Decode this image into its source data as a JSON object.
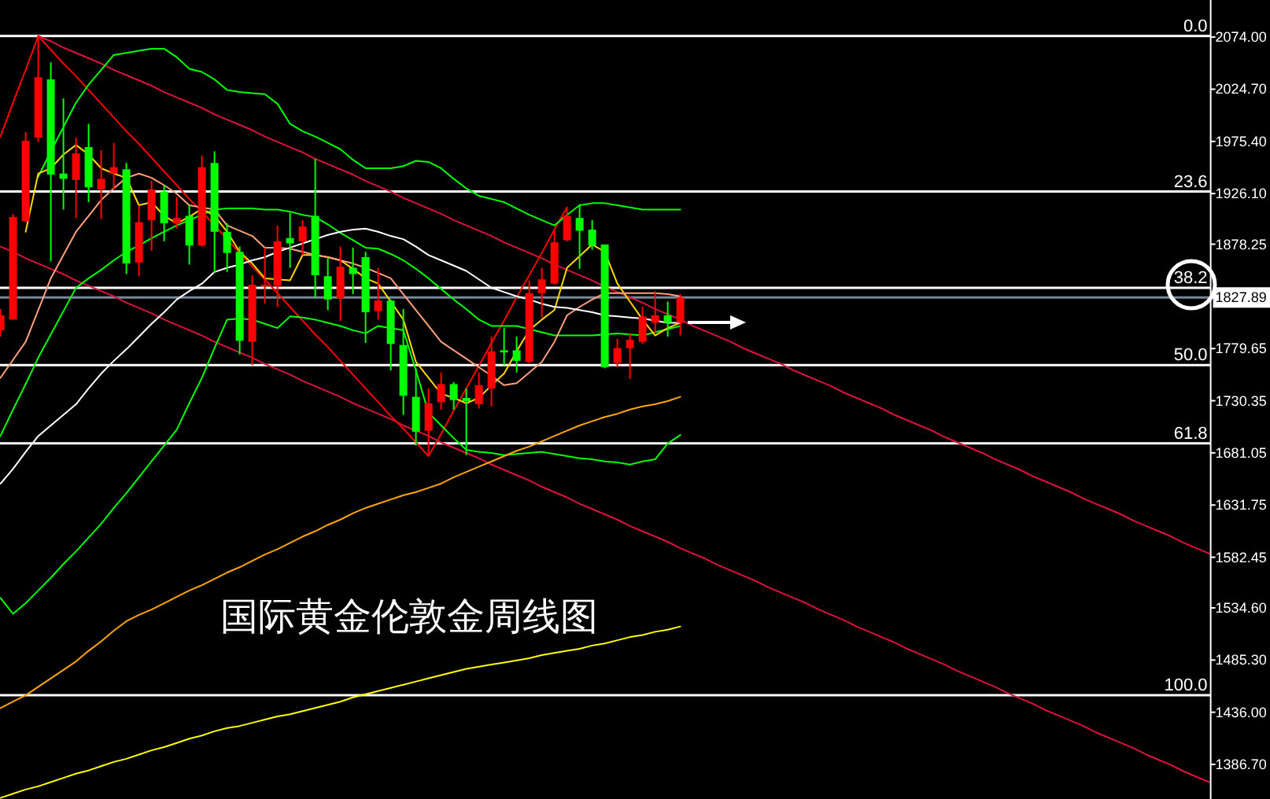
{
  "chart_data": {
    "type": "candlestick",
    "title": "国际黄金伦敦金周线图",
    "categories": [
      null,
      null,
      null,
      null,
      null,
      null,
      null,
      null,
      null,
      null,
      null,
      null,
      null,
      null,
      null,
      null,
      null,
      null,
      null,
      null,
      null,
      null,
      null,
      null,
      null,
      null,
      null,
      null,
      null,
      null,
      null,
      null,
      null,
      null,
      null,
      null,
      null,
      null,
      null,
      null,
      null,
      null,
      null,
      null,
      null,
      null,
      null,
      null,
      null,
      null,
      null,
      null,
      null,
      null,
      null,
      null,
      null,
      null,
      null,
      null,
      null,
      null,
      null,
      null,
      null,
      null,
      null,
      null,
      null,
      null,
      null,
      null,
      null,
      null,
      null,
      null,
      null,
      null,
      null,
      null,
      null,
      null,
      null,
      null,
      null,
      null,
      null,
      null,
      null,
      null,
      null,
      null,
      null,
      null,
      null,
      null,
      null
    ],
    "ohlc": [
      [
        1797,
        1817,
        1791,
        1811
      ],
      [
        1807,
        1907,
        1807,
        1904
      ],
      [
        1900,
        1984,
        1899,
        1976
      ],
      [
        1979,
        2075,
        1975,
        2036
      ],
      [
        2034,
        2050,
        1862,
        1944
      ],
      [
        1945,
        2016,
        1911,
        1940
      ],
      [
        1939,
        1979,
        1903,
        1964
      ],
      [
        1970,
        1992,
        1918,
        1932
      ],
      [
        1930,
        1967,
        1902,
        1940
      ],
      [
        1945,
        1974,
        1930,
        1951
      ],
      [
        1949,
        1955,
        1850,
        1860
      ],
      [
        1861,
        1915,
        1848,
        1899
      ],
      [
        1901,
        1938,
        1872,
        1930
      ],
      [
        1928,
        1934,
        1881,
        1898
      ],
      [
        1898,
        1923,
        1893,
        1903
      ],
      [
        1905,
        1915,
        1859,
        1877
      ],
      [
        1877,
        1962,
        1876,
        1951
      ],
      [
        1955,
        1966,
        1851,
        1890
      ],
      [
        1890,
        1898,
        1852,
        1870
      ],
      [
        1871,
        1876,
        1774,
        1787
      ],
      [
        1786,
        1849,
        1764,
        1840
      ],
      [
        1839,
        1875,
        1822,
        1840
      ],
      [
        1839,
        1896,
        1819,
        1881
      ],
      [
        1884,
        1908,
        1856,
        1879
      ],
      [
        1881,
        1901,
        1868,
        1895
      ],
      [
        1905,
        1959,
        1828,
        1849
      ],
      [
        1848,
        1865,
        1816,
        1826
      ],
      [
        1827,
        1876,
        1806,
        1857
      ],
      [
        1856,
        1875,
        1831,
        1850
      ],
      [
        1866,
        1871,
        1785,
        1814
      ],
      [
        1815,
        1856,
        1807,
        1825
      ],
      [
        1825,
        1826,
        1759,
        1784
      ],
      [
        1783,
        1817,
        1717,
        1735
      ],
      [
        1734,
        1761,
        1688,
        1701
      ],
      [
        1702,
        1742,
        1678,
        1728
      ],
      [
        1729,
        1757,
        1722,
        1746
      ],
      [
        1746,
        1748,
        1722,
        1731
      ],
      [
        1733,
        1742,
        1679,
        1730
      ],
      [
        1727,
        1757,
        1723,
        1745
      ],
      [
        1742,
        1791,
        1725,
        1777
      ],
      [
        1778,
        1799,
        1764,
        1776
      ],
      [
        1778,
        1791,
        1757,
        1768
      ],
      [
        1767,
        1844,
        1766,
        1832
      ],
      [
        1832,
        1856,
        1809,
        1845
      ],
      [
        1841,
        1891,
        1840,
        1880
      ],
      [
        1882,
        1913,
        1881,
        1905
      ],
      [
        1903,
        1916,
        1855,
        1891
      ],
      [
        1892,
        1901,
        1873,
        1877
      ],
      [
        1878,
        1878,
        1761,
        1762
      ],
      [
        1766,
        1789,
        1762,
        1780
      ],
      [
        1780,
        1794,
        1751,
        1788
      ],
      [
        1786,
        1819,
        1784,
        1810
      ],
      [
        1804,
        1834,
        1794,
        1811
      ],
      [
        1811,
        1824,
        1791,
        1804
      ],
      [
        1804,
        1831,
        1792,
        1827.89
      ],
      null,
      null,
      null,
      null,
      null,
      null,
      null,
      null,
      null,
      null,
      null,
      null,
      null,
      null,
      null,
      null,
      null,
      null,
      null,
      null,
      null,
      null,
      null,
      null,
      null,
      null,
      null,
      null,
      null,
      null,
      null,
      null,
      null,
      null,
      null,
      null,
      null,
      null,
      null,
      null,
      null,
      null
    ],
    "colors": [
      "#ff0000",
      "#ff0000",
      "#ff0000",
      "#ff0000",
      "#00ff00",
      "#00ff00",
      "#ff0000",
      "#00ff00",
      "#ff0000",
      "#ff0000",
      "#00ff00",
      "#ff0000",
      "#ff0000",
      "#00ff00",
      "#ff0000",
      "#00ff00",
      "#ff0000",
      "#00ff00",
      "#00ff00",
      "#00ff00",
      "#ff0000",
      "#ff0000",
      "#ff0000",
      "#00ff00",
      "#ff0000",
      "#00ff00",
      "#00ff00",
      "#ff0000",
      "#00ff00",
      "#00ff00",
      "#ff0000",
      "#00ff00",
      "#00ff00",
      "#00ff00",
      "#ff0000",
      "#ff0000",
      "#00ff00",
      "#00ff00",
      "#ff0000",
      "#ff0000",
      "#00ff00",
      "#00ff00",
      "#ff0000",
      "#ff0000",
      "#ff0000",
      "#ff0000",
      "#00ff00",
      "#00ff00",
      "#00ff00",
      "#ff0000",
      "#ff0000",
      "#ff0000",
      "#ff0000",
      "#00ff00",
      "#ff0000",
      null,
      null,
      null,
      null,
      null,
      null,
      null,
      null,
      null,
      null,
      null,
      null,
      null,
      null,
      null,
      null,
      null,
      null,
      null,
      null,
      null,
      null,
      null,
      null,
      null,
      null,
      null,
      null,
      null,
      null,
      null,
      null,
      null,
      null,
      null,
      null,
      null,
      null,
      null,
      null,
      null,
      null
    ],
    "ylim": [
      1354,
      2109
    ],
    "yticks": [
      {
        "value": 2074,
        "label": "2074.00"
      },
      {
        "value": 2024.7,
        "label": "2024.70"
      },
      {
        "value": 1975.4,
        "label": "1975.40"
      },
      {
        "value": 1926.1,
        "label": "1926.10"
      },
      {
        "value": 1878.25,
        "label": "1878.25"
      },
      {
        "value": 1827.89,
        "label": "1827.89"
      },
      {
        "value": 1779.65,
        "label": "1779.65"
      },
      {
        "value": 1730.35,
        "label": "1730.35"
      },
      {
        "value": 1681.05,
        "label": "1681.05"
      },
      {
        "value": 1631.75,
        "label": "1631.75"
      },
      {
        "value": 1582.45,
        "label": "1582.45"
      },
      {
        "value": 1534.6,
        "label": "1534.60"
      },
      {
        "value": 1485.3,
        "label": "1485.30"
      },
      {
        "value": 1436,
        "label": "1436.00"
      },
      {
        "value": 1386.7,
        "label": "1386.70"
      }
    ],
    "tick_labels": "y",
    "ref_lines": [
      {
        "axis": "y",
        "value": 2075,
        "color": "#ffffff"
      },
      {
        "axis": "y",
        "value": 1928,
        "color": "#ffffff"
      },
      {
        "axis": "y",
        "value": 1837,
        "color": "#ffffff"
      },
      {
        "axis": "y",
        "value": 1764,
        "color": "#ffffff"
      },
      {
        "axis": "y",
        "value": 1690,
        "color": "#ffffff"
      },
      {
        "axis": "y",
        "value": 1452,
        "color": "#ffffff"
      },
      {
        "axis": "y",
        "value": 1827.89,
        "color": "#778899"
      }
    ],
    "annotations": [
      {
        "text": "0.0",
        "y": 2075
      },
      {
        "text": "23.6",
        "y": 1928
      },
      {
        "text": "38.2",
        "y": 1837
      },
      {
        "text": "50.0",
        "y": 1764
      },
      {
        "text": "61.8",
        "y": 1690
      },
      {
        "text": "100.0",
        "y": 1452
      }
    ],
    "series": [
      {
        "type": "line",
        "color": "#dc143c",
        "values": [
          null,
          null,
          null,
          2075,
          2070,
          2064,
          2059,
          2054,
          2049,
          2043,
          2038,
          2033,
          2028,
          2022,
          2017,
          2012,
          2007,
          2001,
          1996,
          1991,
          1986,
          1980,
          1975,
          1970,
          1965,
          1959,
          1954,
          1949,
          1944,
          1938,
          1933,
          1928,
          1922,
          1917,
          1912,
          1907,
          1901,
          1896,
          1891,
          1886,
          1880,
          1875,
          1870,
          1865,
          1859,
          1854,
          1849,
          1844,
          1838,
          1833,
          1828,
          1823,
          1817,
          1812,
          1807,
          1801,
          1796,
          1791,
          1786,
          1780,
          1775,
          1770,
          1765,
          1759,
          1754,
          1749,
          1744,
          1738,
          1733,
          1728,
          1723,
          1717,
          1712,
          1707,
          1702,
          1696,
          1691,
          1686,
          1681,
          1675,
          1670,
          1665,
          1659,
          1654,
          1649,
          1644,
          1638,
          1633,
          1628,
          1623,
          1617,
          1612,
          1607,
          1602,
          1596,
          1591,
          1586
        ]
      },
      {
        "type": "line",
        "color": "#dc143c",
        "values": [
          1876,
          1871,
          1865,
          1860,
          1855,
          1850,
          1844,
          1839,
          1834,
          1829,
          1823,
          1818,
          1813,
          1807,
          1802,
          1797,
          1792,
          1786,
          1781,
          1776,
          1771,
          1765,
          1760,
          1755,
          1749,
          1744,
          1739,
          1734,
          1728,
          1723,
          1718,
          1713,
          1707,
          1702,
          1697,
          1691,
          1686,
          1681,
          1676,
          1670,
          1665,
          1660,
          1655,
          1649,
          1644,
          1639,
          1633,
          1628,
          1623,
          1618,
          1612,
          1607,
          1602,
          1597,
          1591,
          1586,
          1581,
          1575,
          1570,
          1565,
          1560,
          1554,
          1549,
          1544,
          1539,
          1533,
          1528,
          1523,
          1517,
          1512,
          1507,
          1502,
          1496,
          1491,
          1486,
          1481,
          1475,
          1470,
          1465,
          1460,
          1454,
          1449,
          1444,
          1438,
          1433,
          1428,
          1423,
          1417,
          1412,
          1407,
          1402,
          1396,
          1391,
          1386,
          1380,
          1375,
          1370
        ]
      },
      {
        "type": "line",
        "color": "#ff0000",
        "values": [
          1980,
          2012,
          2043,
          2075,
          2062,
          2049,
          2037,
          2024,
          2011,
          1998,
          1985,
          1973,
          1960,
          1947,
          1934,
          1921,
          1909,
          1896,
          1883,
          1870,
          1857,
          1845,
          1832,
          1819,
          1806,
          1793,
          1781,
          1768,
          1755,
          1742,
          1729,
          1716,
          1704,
          1691,
          1678,
          1699,
          1721,
          1742,
          1763,
          1785,
          1806,
          1828,
          1849,
          1870,
          1892,
          1913,
          null,
          null,
          null,
          null,
          null,
          null,
          null,
          null,
          null,
          null,
          null,
          null,
          null,
          null,
          null,
          null,
          null,
          null,
          null,
          null,
          null,
          null,
          null,
          null,
          null,
          null,
          null,
          null,
          null,
          null,
          null,
          null,
          null,
          null,
          null,
          null,
          null,
          null,
          null,
          null,
          null,
          null,
          null,
          null,
          null,
          null,
          null,
          null,
          null,
          null,
          null
        ]
      },
      {
        "type": "line",
        "color": "#00ff00",
        "values": [
          null,
          null,
          null,
          1942,
          1966,
          1989,
          2012,
          2029,
          2043,
          2057,
          2059,
          2061,
          2063,
          2063,
          2055,
          2044,
          2041,
          2034,
          2024,
          2022,
          2021,
          2020,
          2011,
          1992,
          1985,
          1980,
          1974,
          1968,
          1958,
          1950,
          1950,
          1950,
          1952,
          1957,
          1956,
          1950,
          1940,
          1931,
          1924,
          1921,
          1918,
          1912,
          1906,
          1901,
          1896,
          1906,
          1915,
          1917,
          1917,
          1915,
          1913,
          1911,
          1911,
          1911,
          1911,
          null,
          null,
          null,
          null,
          null,
          null,
          null,
          null,
          null,
          null,
          null,
          null,
          null,
          null,
          null,
          null,
          null,
          null,
          null,
          null,
          null,
          null,
          null,
          null,
          null,
          null,
          null,
          null,
          null,
          null,
          null,
          null,
          null,
          null,
          null,
          null,
          null,
          null,
          null,
          null,
          null,
          null
        ]
      },
      {
        "type": "line",
        "color": "#00ff00",
        "values": [
          1697,
          1722,
          1746,
          1771,
          1793,
          1815,
          1837,
          1846,
          1854,
          1863,
          1871,
          1877,
          1884,
          1890,
          1896,
          1901,
          1906,
          1911,
          1912,
          1912,
          1912,
          1911,
          1911,
          1909,
          1906,
          1904,
          1897,
          1889,
          1882,
          1875,
          1874,
          1869,
          1863,
          1855,
          1846,
          1836,
          1826,
          1817,
          1807,
          1801,
          1801,
          1801,
          1798,
          1795,
          1792,
          1792,
          1792,
          1792,
          1793,
          1794,
          1793,
          1792,
          1795,
          1798,
          1801,
          null,
          null,
          null,
          null,
          null,
          null,
          null,
          null,
          null,
          null,
          null,
          null,
          null,
          null,
          null,
          null,
          null,
          null,
          null,
          null,
          null,
          null,
          null,
          null,
          null,
          null,
          null,
          null,
          null,
          null,
          null,
          null,
          null,
          null,
          null,
          null,
          null,
          null,
          null,
          null,
          null,
          null
        ]
      },
      {
        "type": "line",
        "color": "#00ff00",
        "values": [
          1544,
          1529,
          1539,
          1551,
          1563,
          1576,
          1588,
          1601,
          1614,
          1629,
          1643,
          1658,
          1673,
          1688,
          1703,
          1728,
          1752,
          1780,
          1807,
          1808,
          1807,
          1803,
          1799,
          1810,
          1809,
          1807,
          1804,
          1801,
          1797,
          1794,
          1801,
          1799,
          1797,
          1759,
          1719,
          1707,
          1695,
          1684,
          1682,
          1681,
          1679,
          1680,
          1681,
          1682,
          1680,
          1678,
          1676,
          1675,
          1673,
          1672,
          1670,
          1673,
          1675,
          1690,
          1698,
          null,
          null,
          null,
          null,
          null,
          null,
          null,
          null,
          null,
          null,
          null,
          null,
          null,
          null,
          null,
          null,
          null,
          null,
          null,
          null,
          null,
          null,
          null,
          null,
          null,
          null,
          null,
          null,
          null,
          null,
          null,
          null,
          null,
          null,
          null,
          null,
          null,
          null,
          null,
          null,
          null,
          null
        ]
      },
      {
        "type": "line",
        "color": "#ffd700",
        "values": [
          null,
          null,
          1890,
          1945,
          1950,
          1963,
          1972,
          1963,
          1950,
          1945,
          1941,
          1915,
          1918,
          1905,
          1898,
          1904,
          1912,
          1905,
          1890,
          1871,
          1860,
          1846,
          1845,
          1844,
          1868,
          1868,
          1866,
          1863,
          1855,
          1846,
          1841,
          1824,
          1807,
          1767,
          1752,
          1737,
          1733,
          1728,
          1733,
          1745,
          1756,
          1777,
          1797,
          1807,
          1816,
          1856,
          1867,
          1878,
          1871,
          1841,
          1824,
          1807,
          1792,
          1799,
          1804,
          null,
          null,
          null,
          null,
          null,
          null,
          null,
          null,
          null,
          null,
          null,
          null,
          null,
          null,
          null,
          null,
          null,
          null,
          null,
          null,
          null,
          null,
          null,
          null,
          null,
          null,
          null,
          null,
          null,
          null,
          null,
          null,
          null,
          null,
          null,
          null,
          null,
          null,
          null,
          null,
          null,
          null
        ]
      },
      {
        "type": "line",
        "color": "#ffa07a",
        "values": [
          1752,
          1769,
          1786,
          1816,
          1846,
          1868,
          1890,
          1905,
          1920,
          1931,
          1941,
          1945,
          1941,
          1934,
          1926,
          1915,
          1913,
          1911,
          1896,
          1891,
          1886,
          1875,
          1875,
          1874,
          1871,
          1868,
          1866,
          1863,
          1860,
          1856,
          1851,
          1846,
          1831,
          1816,
          1801,
          1786,
          1778,
          1770,
          1762,
          1754,
          1745,
          1747,
          1757,
          1767,
          1786,
          1811,
          1819,
          1826,
          1832,
          1832,
          1832,
          1832,
          1832,
          1831,
          1829,
          null,
          null,
          null,
          null,
          null,
          null,
          null,
          null,
          null,
          null,
          null,
          null,
          null,
          null,
          null,
          null,
          null,
          null,
          null,
          null,
          null,
          null,
          null,
          null,
          null,
          null,
          null,
          null,
          null,
          null,
          null,
          null,
          null,
          null,
          null,
          null,
          null,
          null,
          null,
          null,
          null,
          null
        ]
      },
      {
        "type": "line",
        "color": "#ffffff",
        "values": [
          1652,
          1666,
          1682,
          1697,
          1707,
          1717,
          1727,
          1742,
          1756,
          1768,
          1779,
          1791,
          1803,
          1814,
          1826,
          1834,
          1841,
          1852,
          1856,
          1859,
          1863,
          1866,
          1871,
          1875,
          1879,
          1883,
          1887,
          1890,
          1892,
          1893,
          1890,
          1886,
          1883,
          1876,
          1868,
          1863,
          1858,
          1853,
          1845,
          1837,
          1833,
          1829,
          1826,
          1822,
          1819,
          1818,
          1816,
          1814,
          1811,
          1810,
          1809,
          1808,
          1806,
          1804,
          1804,
          null,
          null,
          null,
          null,
          null,
          null,
          null,
          null,
          null,
          null,
          null,
          null,
          null,
          null,
          null,
          null,
          null,
          null,
          null,
          null,
          null,
          null,
          null,
          null,
          null,
          null,
          null,
          null,
          null,
          null,
          null,
          null,
          null,
          null,
          null,
          null,
          null,
          null,
          null,
          null,
          null,
          null
        ]
      },
      {
        "type": "line",
        "color": "#ffa500",
        "values": [
          1440,
          1446,
          1452,
          1460,
          1468,
          1476,
          1484,
          1494,
          1503,
          1513,
          1522,
          1528,
          1533,
          1539,
          1545,
          1551,
          1556,
          1562,
          1568,
          1573,
          1579,
          1585,
          1590,
          1596,
          1602,
          1607,
          1613,
          1618,
          1624,
          1629,
          1633,
          1637,
          1641,
          1644,
          1648,
          1652,
          1658,
          1663,
          1668,
          1673,
          1678,
          1683,
          1687,
          1692,
          1697,
          1702,
          1707,
          1711,
          1715,
          1718,
          1722,
          1725,
          1727,
          1730,
          1734,
          null,
          null,
          null,
          null,
          null,
          null,
          null,
          null,
          null,
          null,
          null,
          null,
          null,
          null,
          null,
          null,
          null,
          null,
          null,
          null,
          null,
          null,
          null,
          null,
          null,
          null,
          null,
          null,
          null,
          null,
          null,
          null,
          null,
          null,
          null,
          null,
          null,
          null,
          null,
          null,
          null,
          null
        ]
      },
      {
        "type": "line",
        "color": "#ffff00",
        "values": [
          1355,
          1359,
          1363,
          1366,
          1370,
          1374,
          1378,
          1381,
          1385,
          1389,
          1392,
          1396,
          1400,
          1403,
          1407,
          1411,
          1414,
          1418,
          1421,
          1423,
          1426,
          1429,
          1432,
          1434,
          1437,
          1440,
          1443,
          1446,
          1450,
          1453,
          1456,
          1459,
          1462,
          1465,
          1468,
          1471,
          1474,
          1477,
          1479,
          1481,
          1483,
          1485,
          1487,
          1490,
          1492,
          1494,
          1496,
          1499,
          1501,
          1504,
          1507,
          1509,
          1512,
          1514,
          1517,
          null,
          null,
          null,
          null,
          null,
          null,
          null,
          null,
          null,
          null,
          null,
          null,
          null,
          null,
          null,
          null,
          null,
          null,
          null,
          null,
          null,
          null,
          null,
          null,
          null,
          null,
          null,
          null,
          null,
          null,
          null,
          null,
          null,
          null,
          null,
          null,
          null,
          null,
          null,
          null,
          null,
          null
        ]
      }
    ]
  }
}
